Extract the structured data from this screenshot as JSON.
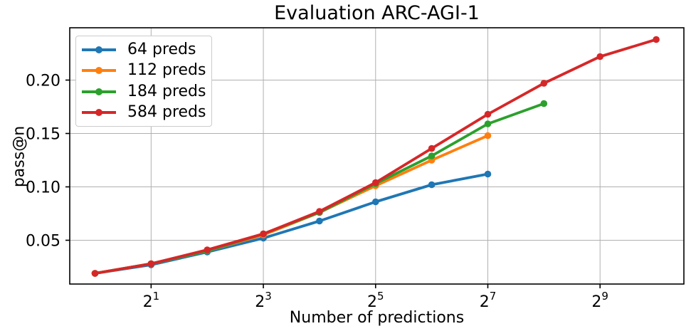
{
  "figure": {
    "title": "Evaluation ARC-AGI-1"
  },
  "chart_data": {
    "type": "line",
    "title": "Evaluation ARC-AGI-1",
    "xlabel": "Number of predictions",
    "ylabel": "pass@n",
    "x_scale": "log2",
    "xlim": [
      0.732,
      1442
    ],
    "ylim": [
      0.009,
      0.249
    ],
    "grid": true,
    "grid_color": "#b0b0b0",
    "spine_color": "#000000",
    "background": "#ffffff",
    "legend_position": "upper-left",
    "x_ticks": [
      {
        "base": "2",
        "exp": "1",
        "value": 2
      },
      {
        "base": "2",
        "exp": "3",
        "value": 8
      },
      {
        "base": "2",
        "exp": "5",
        "value": 32
      },
      {
        "base": "2",
        "exp": "7",
        "value": 128
      },
      {
        "base": "2",
        "exp": "9",
        "value": 512
      }
    ],
    "y_ticks": [
      {
        "label": "0.05",
        "value": 0.05
      },
      {
        "label": "0.10",
        "value": 0.1
      },
      {
        "label": "0.15",
        "value": 0.15
      },
      {
        "label": "0.20",
        "value": 0.2
      }
    ],
    "series": [
      {
        "name": "64 preds",
        "color": "#1f77b4",
        "x": [
          1,
          2,
          4,
          8,
          16,
          32,
          64,
          128
        ],
        "y": [
          0.019,
          0.027,
          0.039,
          0.052,
          0.068,
          0.086,
          0.102,
          0.112
        ]
      },
      {
        "name": "112 preds",
        "color": "#ff7f0e",
        "x": [
          1,
          2,
          4,
          8,
          16,
          32,
          64,
          128
        ],
        "y": [
          0.019,
          0.028,
          0.04,
          0.055,
          0.076,
          0.101,
          0.125,
          0.148
        ]
      },
      {
        "name": "184 preds",
        "color": "#2ca02c",
        "x": [
          1,
          2,
          4,
          8,
          16,
          32,
          64,
          128,
          256
        ],
        "y": [
          0.019,
          0.028,
          0.04,
          0.056,
          0.076,
          0.103,
          0.129,
          0.159,
          0.178
        ]
      },
      {
        "name": "584 preds",
        "color": "#d62728",
        "x": [
          1,
          2,
          4,
          8,
          16,
          32,
          64,
          128,
          256,
          512,
          1024
        ],
        "y": [
          0.019,
          0.028,
          0.041,
          0.056,
          0.077,
          0.104,
          0.136,
          0.168,
          0.197,
          0.222,
          0.238
        ]
      }
    ]
  }
}
